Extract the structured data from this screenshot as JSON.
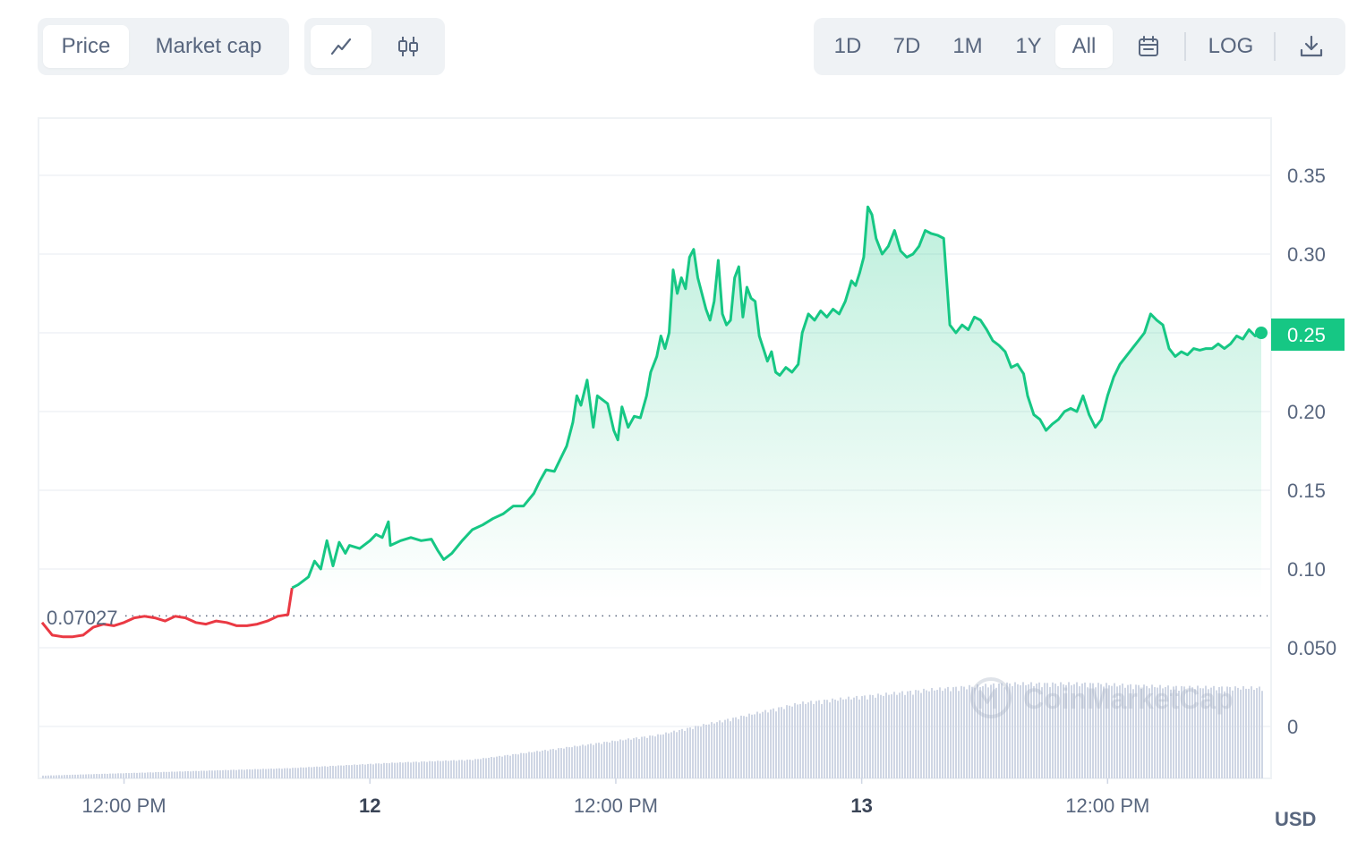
{
  "toolbar": {
    "metric_tabs": [
      {
        "label": "Price",
        "active": true
      },
      {
        "label": "Market cap",
        "active": false
      }
    ],
    "chart_type_buttons": [
      {
        "icon": "line-chart-icon",
        "active": true
      },
      {
        "icon": "candlestick-icon",
        "active": false
      }
    ],
    "range_buttons": [
      {
        "label": "1D",
        "active": false
      },
      {
        "label": "7D",
        "active": false
      },
      {
        "label": "1M",
        "active": false
      },
      {
        "label": "1Y",
        "active": false
      },
      {
        "label": "All",
        "active": true
      }
    ],
    "calendar_icon": "calendar-icon",
    "log_label": "LOG",
    "download_icon": "download-icon"
  },
  "colors": {
    "up": "#16c784",
    "down": "#ea3943",
    "grid": "#eff2f5",
    "text": "#58667e",
    "volume": "#cfd6e4"
  },
  "watermark": "CoinMarketCap",
  "currency_label": "USD",
  "chart_data": {
    "type": "line",
    "y_ticks": [
      "0.35",
      "0.30",
      "0.25",
      "0.20",
      "0.15",
      "0.10",
      "0.050",
      "0"
    ],
    "x_ticks": [
      {
        "label": "12:00 PM",
        "t": 12,
        "bold": false
      },
      {
        "label": "12",
        "t": 24,
        "bold": true
      },
      {
        "label": "12:00 PM",
        "t": 36,
        "bold": false
      },
      {
        "label": "13",
        "t": 48,
        "bold": true
      },
      {
        "label": "12:00 PM",
        "t": 60,
        "bold": false
      }
    ],
    "ylim": [
      0,
      0.35
    ],
    "baseline_price": 0.07027,
    "baseline_label": "0.07027",
    "current_price": 0.25,
    "current_label": "0.25",
    "series": [
      {
        "values": [
          [
            8.0,
            0.066
          ],
          [
            8.5,
            0.058
          ],
          [
            9.0,
            0.057
          ],
          [
            9.5,
            0.057
          ],
          [
            10.0,
            0.058
          ],
          [
            10.5,
            0.063
          ],
          [
            11.0,
            0.065
          ],
          [
            11.5,
            0.064
          ],
          [
            12.0,
            0.066
          ],
          [
            12.5,
            0.069
          ],
          [
            13.0,
            0.07
          ],
          [
            13.5,
            0.069
          ],
          [
            14.0,
            0.067
          ],
          [
            14.5,
            0.07
          ],
          [
            15.0,
            0.069
          ],
          [
            15.5,
            0.066
          ],
          [
            16.0,
            0.065
          ],
          [
            16.5,
            0.067
          ],
          [
            17.0,
            0.066
          ],
          [
            17.5,
            0.064
          ],
          [
            18.0,
            0.064
          ],
          [
            18.5,
            0.065
          ],
          [
            19.0,
            0.067
          ],
          [
            19.5,
            0.07
          ],
          [
            20.0,
            0.071
          ],
          [
            20.2,
            0.088
          ],
          [
            20.5,
            0.09
          ],
          [
            21.0,
            0.095
          ],
          [
            21.3,
            0.105
          ],
          [
            21.6,
            0.1
          ],
          [
            21.9,
            0.118
          ],
          [
            22.2,
            0.102
          ],
          [
            22.5,
            0.117
          ],
          [
            22.8,
            0.11
          ],
          [
            23.0,
            0.115
          ],
          [
            23.5,
            0.113
          ],
          [
            24.0,
            0.118
          ],
          [
            24.3,
            0.122
          ],
          [
            24.6,
            0.12
          ],
          [
            24.9,
            0.13
          ],
          [
            25.0,
            0.115
          ],
          [
            25.5,
            0.118
          ],
          [
            26.0,
            0.12
          ],
          [
            26.5,
            0.118
          ],
          [
            27.0,
            0.119
          ],
          [
            27.3,
            0.112
          ],
          [
            27.6,
            0.106
          ],
          [
            28.0,
            0.11
          ],
          [
            28.5,
            0.118
          ],
          [
            29.0,
            0.125
          ],
          [
            29.5,
            0.128
          ],
          [
            30.0,
            0.132
          ],
          [
            30.5,
            0.135
          ],
          [
            31.0,
            0.14
          ],
          [
            31.5,
            0.14
          ],
          [
            32.0,
            0.148
          ],
          [
            32.3,
            0.156
          ],
          [
            32.6,
            0.163
          ],
          [
            33.0,
            0.162
          ],
          [
            33.3,
            0.17
          ],
          [
            33.6,
            0.178
          ],
          [
            33.9,
            0.193
          ],
          [
            34.1,
            0.21
          ],
          [
            34.3,
            0.204
          ],
          [
            34.6,
            0.22
          ],
          [
            34.9,
            0.19
          ],
          [
            35.1,
            0.21
          ],
          [
            35.4,
            0.207
          ],
          [
            35.6,
            0.205
          ],
          [
            35.9,
            0.188
          ],
          [
            36.1,
            0.182
          ],
          [
            36.3,
            0.203
          ],
          [
            36.6,
            0.19
          ],
          [
            36.9,
            0.197
          ],
          [
            37.2,
            0.196
          ],
          [
            37.5,
            0.21
          ],
          [
            37.7,
            0.225
          ],
          [
            38.0,
            0.235
          ],
          [
            38.2,
            0.248
          ],
          [
            38.4,
            0.24
          ],
          [
            38.6,
            0.25
          ],
          [
            38.8,
            0.29
          ],
          [
            39.0,
            0.275
          ],
          [
            39.2,
            0.285
          ],
          [
            39.4,
            0.278
          ],
          [
            39.6,
            0.298
          ],
          [
            39.8,
            0.303
          ],
          [
            40.0,
            0.285
          ],
          [
            40.2,
            0.275
          ],
          [
            40.4,
            0.265
          ],
          [
            40.6,
            0.258
          ],
          [
            40.8,
            0.27
          ],
          [
            41.0,
            0.296
          ],
          [
            41.2,
            0.262
          ],
          [
            41.4,
            0.255
          ],
          [
            41.6,
            0.258
          ],
          [
            41.8,
            0.285
          ],
          [
            42.0,
            0.292
          ],
          [
            42.2,
            0.26
          ],
          [
            42.4,
            0.279
          ],
          [
            42.6,
            0.272
          ],
          [
            42.8,
            0.27
          ],
          [
            43.0,
            0.248
          ],
          [
            43.2,
            0.24
          ],
          [
            43.4,
            0.232
          ],
          [
            43.6,
            0.238
          ],
          [
            43.8,
            0.225
          ],
          [
            44.0,
            0.223
          ],
          [
            44.3,
            0.228
          ],
          [
            44.6,
            0.225
          ],
          [
            44.9,
            0.23
          ],
          [
            45.1,
            0.25
          ],
          [
            45.4,
            0.262
          ],
          [
            45.7,
            0.258
          ],
          [
            46.0,
            0.264
          ],
          [
            46.3,
            0.26
          ],
          [
            46.6,
            0.265
          ],
          [
            46.9,
            0.262
          ],
          [
            47.2,
            0.27
          ],
          [
            47.5,
            0.283
          ],
          [
            47.7,
            0.28
          ],
          [
            47.9,
            0.288
          ],
          [
            48.1,
            0.298
          ],
          [
            48.3,
            0.33
          ],
          [
            48.5,
            0.325
          ],
          [
            48.7,
            0.31
          ],
          [
            49.0,
            0.3
          ],
          [
            49.3,
            0.305
          ],
          [
            49.6,
            0.315
          ],
          [
            49.9,
            0.302
          ],
          [
            50.2,
            0.298
          ],
          [
            50.5,
            0.3
          ],
          [
            50.8,
            0.305
          ],
          [
            51.1,
            0.315
          ],
          [
            51.4,
            0.313
          ],
          [
            51.7,
            0.312
          ],
          [
            52.0,
            0.31
          ],
          [
            52.3,
            0.255
          ],
          [
            52.6,
            0.25
          ],
          [
            52.9,
            0.255
          ],
          [
            53.2,
            0.252
          ],
          [
            53.5,
            0.26
          ],
          [
            53.8,
            0.258
          ],
          [
            54.1,
            0.252
          ],
          [
            54.4,
            0.245
          ],
          [
            54.7,
            0.242
          ],
          [
            55.0,
            0.238
          ],
          [
            55.3,
            0.228
          ],
          [
            55.6,
            0.23
          ],
          [
            55.9,
            0.224
          ],
          [
            56.1,
            0.21
          ],
          [
            56.4,
            0.198
          ],
          [
            56.7,
            0.195
          ],
          [
            57.0,
            0.188
          ],
          [
            57.3,
            0.192
          ],
          [
            57.6,
            0.195
          ],
          [
            57.9,
            0.2
          ],
          [
            58.2,
            0.202
          ],
          [
            58.5,
            0.2
          ],
          [
            58.8,
            0.21
          ],
          [
            59.1,
            0.198
          ],
          [
            59.4,
            0.19
          ],
          [
            59.7,
            0.195
          ],
          [
            60.0,
            0.21
          ],
          [
            60.3,
            0.222
          ],
          [
            60.6,
            0.23
          ],
          [
            60.9,
            0.235
          ],
          [
            61.2,
            0.24
          ],
          [
            61.5,
            0.245
          ],
          [
            61.8,
            0.25
          ],
          [
            62.1,
            0.262
          ],
          [
            62.4,
            0.258
          ],
          [
            62.7,
            0.255
          ],
          [
            63.0,
            0.24
          ],
          [
            63.3,
            0.235
          ],
          [
            63.6,
            0.238
          ],
          [
            63.9,
            0.236
          ],
          [
            64.2,
            0.24
          ],
          [
            64.5,
            0.239
          ],
          [
            64.8,
            0.24
          ],
          [
            65.1,
            0.24
          ],
          [
            65.4,
            0.243
          ],
          [
            65.7,
            0.24
          ],
          [
            66.0,
            0.243
          ],
          [
            66.3,
            0.248
          ],
          [
            66.6,
            0.246
          ],
          [
            66.9,
            0.252
          ],
          [
            67.2,
            0.248
          ],
          [
            67.5,
            0.25
          ]
        ]
      }
    ],
    "volume_profile": [
      [
        8,
        0.0
      ],
      [
        20,
        0.07
      ],
      [
        25,
        0.12
      ],
      [
        29,
        0.15
      ],
      [
        33,
        0.25
      ],
      [
        38,
        0.38
      ],
      [
        42,
        0.55
      ],
      [
        45,
        0.68
      ],
      [
        48,
        0.74
      ],
      [
        51,
        0.8
      ],
      [
        55,
        0.86
      ],
      [
        59,
        0.86
      ],
      [
        63,
        0.83
      ],
      [
        67.5,
        0.82
      ]
    ]
  }
}
